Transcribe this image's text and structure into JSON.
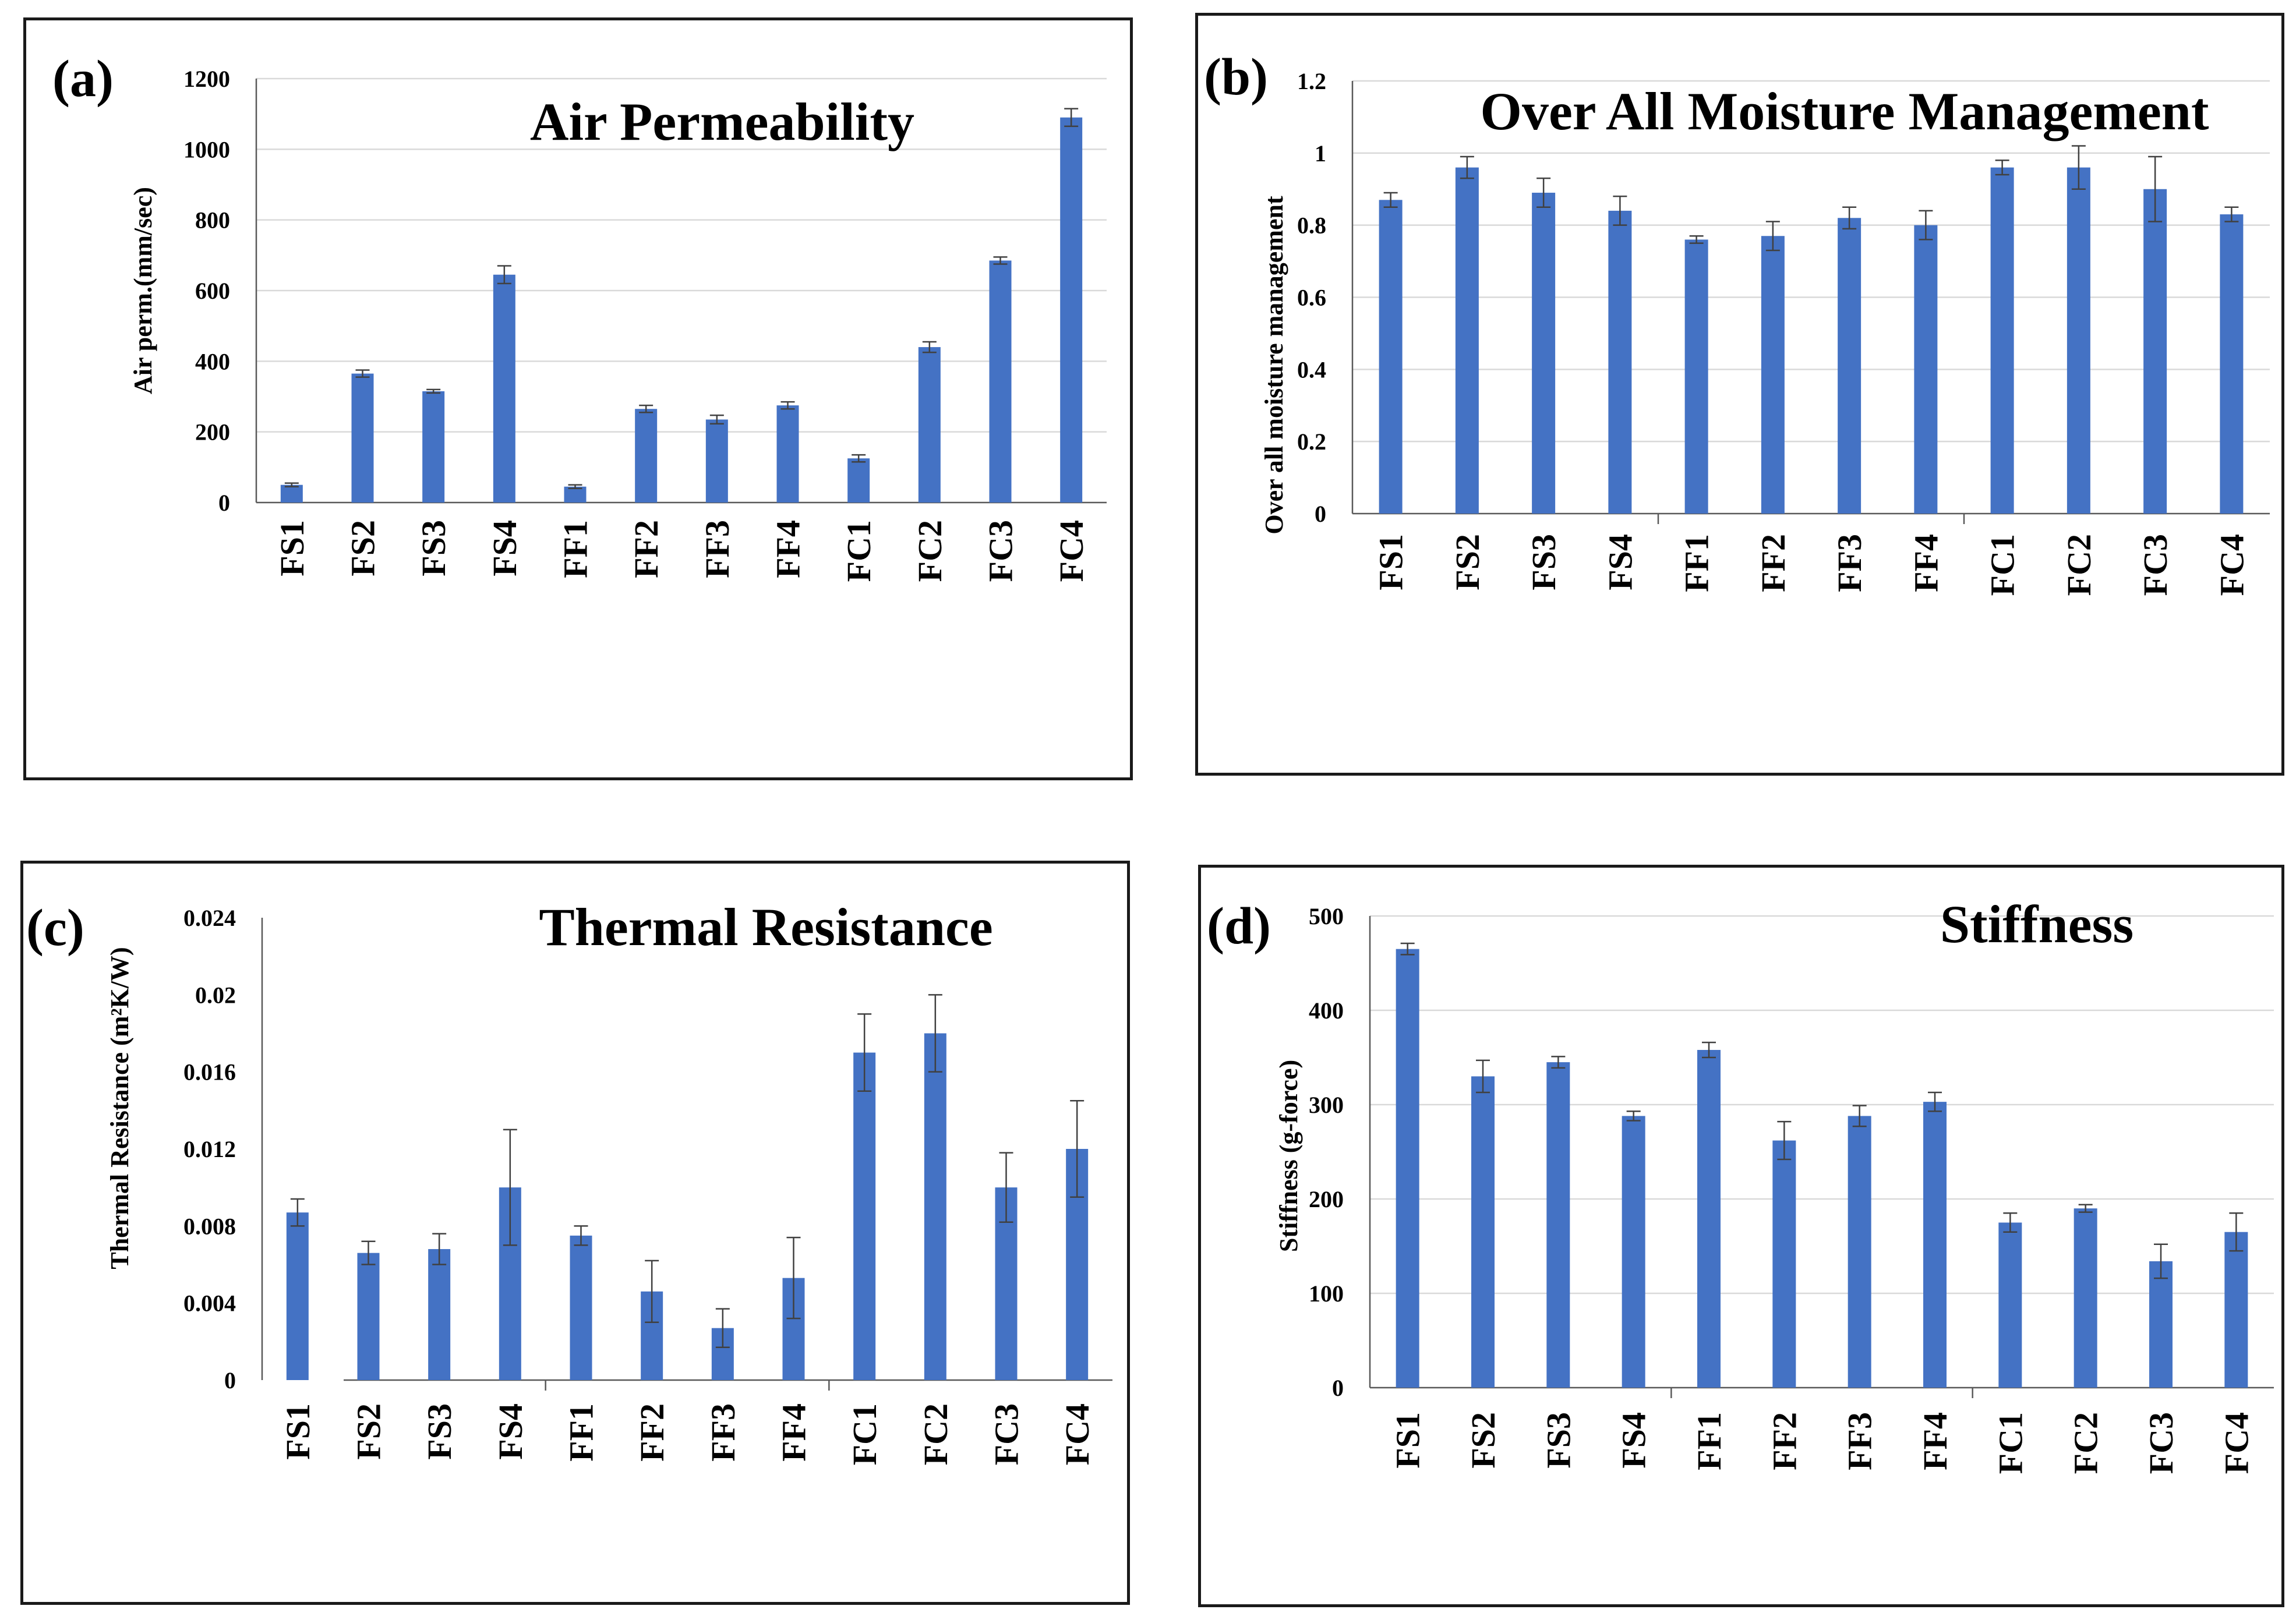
{
  "chart_data": [
    {
      "id": "a",
      "panel_label": "(a)",
      "type": "bar",
      "title": "Air Permeability",
      "ylabel": "Air perm.(mm/sec)",
      "xlabel": "",
      "categories": [
        "FS1",
        "FS2",
        "FS3",
        "FS4",
        "FF1",
        "FF2",
        "FF3",
        "FF4",
        "FC1",
        "FC2",
        "FC3",
        "FC4"
      ],
      "values": [
        50,
        365,
        315,
        645,
        45,
        265,
        235,
        275,
        125,
        440,
        685,
        1090
      ],
      "errors": [
        5,
        10,
        5,
        25,
        5,
        10,
        12,
        10,
        10,
        15,
        10,
        25
      ],
      "ylim": [
        0,
        1200
      ],
      "yticks": [
        0,
        200,
        400,
        600,
        800,
        1000,
        1200
      ],
      "ytick_labels": [
        "0",
        "200",
        "400",
        "600",
        "800",
        "1000",
        "1200"
      ],
      "grid": true,
      "bar_color": "#4472c4"
    },
    {
      "id": "b",
      "panel_label": "(b)",
      "type": "bar",
      "title": "Over All Moisture Management",
      "ylabel": "Over all moisture management",
      "xlabel": "",
      "categories": [
        "FS1",
        "FS2",
        "FS3",
        "FS4",
        "FF1",
        "FF2",
        "FF3",
        "FF4",
        "FC1",
        "FC2",
        "FC3",
        "FC4"
      ],
      "values": [
        0.87,
        0.96,
        0.89,
        0.84,
        0.76,
        0.77,
        0.82,
        0.8,
        0.96,
        0.96,
        0.9,
        0.83
      ],
      "errors": [
        0.02,
        0.03,
        0.04,
        0.04,
        0.01,
        0.04,
        0.03,
        0.04,
        0.02,
        0.06,
        0.09,
        0.02
      ],
      "ylim": [
        0,
        1.2
      ],
      "yticks": [
        0,
        0.2,
        0.4,
        0.6,
        0.8,
        1,
        1.2
      ],
      "ytick_labels": [
        "0",
        "0.2",
        "0.4",
        "0.6",
        "0.8",
        "1",
        "1.2"
      ],
      "grid": true,
      "bar_color": "#4472c4"
    },
    {
      "id": "c",
      "panel_label": "(c)",
      "type": "bar",
      "title": "Thermal Resistance",
      "ylabel": "Thermal Resistance (m²K/W)",
      "xlabel": "",
      "categories": [
        "FS1",
        "FS2",
        "FS3",
        "FS4",
        "FF1",
        "FF2",
        "FF3",
        "FF4",
        "FC1",
        "FC2",
        "FC3",
        "FC4"
      ],
      "values": [
        0.0087,
        0.0066,
        0.0068,
        0.01,
        0.0075,
        0.0046,
        0.0027,
        0.0053,
        0.017,
        0.018,
        0.01,
        0.012
      ],
      "errors": [
        0.0007,
        0.0006,
        0.0008,
        0.003,
        0.0005,
        0.0016,
        0.001,
        0.0021,
        0.002,
        0.002,
        0.0018,
        0.0025
      ],
      "ylim": [
        0,
        0.024
      ],
      "yticks": [
        0,
        0.004,
        0.008,
        0.012,
        0.016,
        0.02,
        0.024
      ],
      "ytick_labels": [
        "0",
        "0.004",
        "0.008",
        "0.012",
        "0.016",
        "0.02",
        "0.024"
      ],
      "grid": false,
      "bar_color": "#4472c4"
    },
    {
      "id": "d",
      "panel_label": "(d)",
      "type": "bar",
      "title": "Stiffness",
      "ylabel": "Stiffness (g-force)",
      "xlabel": "",
      "categories": [
        "FS1",
        "FS2",
        "FS3",
        "FS4",
        "FF1",
        "FF2",
        "FF3",
        "FF4",
        "FC1",
        "FC2",
        "FC3",
        "FC4"
      ],
      "values": [
        465,
        330,
        345,
        288,
        358,
        262,
        288,
        303,
        175,
        190,
        134,
        165
      ],
      "errors": [
        6,
        17,
        6,
        5,
        8,
        20,
        11,
        10,
        10,
        4,
        18,
        20
      ],
      "ylim": [
        0,
        500
      ],
      "yticks": [
        0,
        100,
        200,
        300,
        400,
        500
      ],
      "ytick_labels": [
        "0",
        "100",
        "200",
        "300",
        "400",
        "500"
      ],
      "grid": true,
      "bar_color": "#4472c4"
    }
  ]
}
